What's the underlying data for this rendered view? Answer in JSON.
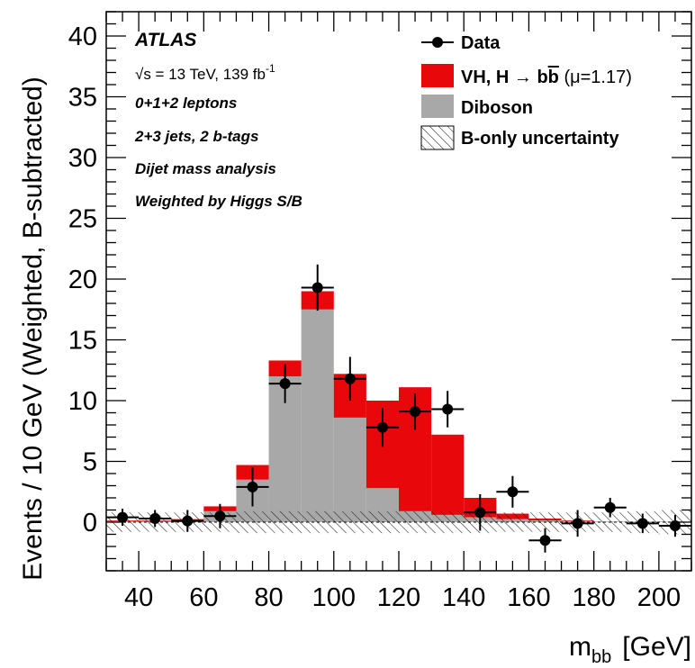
{
  "chart_data": {
    "type": "bar",
    "stacked": true,
    "xlabel": "m",
    "xlabel_subscript": "bb",
    "xlabel_unit": "[GeV]",
    "ylabel": "Events / 10 GeV (Weighted, B-subtracted)",
    "xlim": [
      30,
      210
    ],
    "ylim": [
      -4,
      42
    ],
    "xticks": [
      40,
      60,
      80,
      100,
      120,
      140,
      160,
      180,
      200
    ],
    "yticks": [
      0,
      5,
      10,
      15,
      20,
      25,
      30,
      35,
      40
    ],
    "grid": false,
    "legend_position": "top-right",
    "bin_edges": [
      30,
      40,
      50,
      60,
      70,
      80,
      90,
      100,
      110,
      120,
      130,
      140,
      150,
      160,
      170,
      180,
      190,
      200,
      210
    ],
    "series": [
      {
        "name": "Diboson",
        "color": "#a8a8a8",
        "values": [
          0.1,
          0.1,
          0.15,
          0.9,
          3.5,
          12.0,
          17.5,
          8.6,
          2.8,
          0.9,
          0.6,
          0.4,
          0.25,
          0.15,
          0.1,
          0.05,
          0.05,
          0.05
        ]
      },
      {
        "name": "VH, H → bb̄ (μ=1.17)",
        "color": "#e8070b",
        "values": [
          0.05,
          0.05,
          0.1,
          0.4,
          1.2,
          1.3,
          1.5,
          3.6,
          7.2,
          10.2,
          6.6,
          1.6,
          0.45,
          0.15,
          0.05,
          0.0,
          0.0,
          0.0
        ]
      }
    ],
    "data": {
      "name": "Data",
      "x": [
        35,
        45,
        55,
        65,
        75,
        85,
        95,
        105,
        115,
        125,
        135,
        145,
        155,
        165,
        175,
        185,
        195,
        205
      ],
      "y": [
        0.4,
        0.3,
        0.1,
        0.5,
        2.9,
        11.4,
        19.3,
        11.8,
        7.8,
        9.1,
        9.3,
        0.8,
        2.5,
        -1.5,
        -0.1,
        1.2,
        -0.1,
        -0.3
      ],
      "yerr": [
        0.7,
        0.7,
        0.9,
        1.0,
        1.6,
        1.6,
        1.9,
        1.8,
        1.6,
        1.5,
        1.5,
        1.5,
        1.3,
        1.0,
        1.1,
        0.8,
        0.8,
        0.9
      ]
    },
    "b_only_uncertainty": {
      "name": "B-only uncertainty",
      "half_width": [
        0.8,
        0.8,
        0.8,
        0.8,
        0.9,
        0.9,
        0.9,
        0.9,
        0.9,
        0.9,
        0.9,
        0.9,
        0.8,
        0.8,
        0.8,
        0.8,
        0.9,
        1.0
      ]
    }
  },
  "annotations": {
    "experiment": "ATLAS",
    "energy_prefix": "√s = 13 TeV, 139 fb",
    "energy_exponent": "-1",
    "line1": "0+1+2 leptons",
    "line2": "2+3 jets, 2 b-tags",
    "line3": "Dijet mass analysis",
    "line4": "Weighted by Higgs S/B"
  },
  "legend": {
    "data": "Data",
    "signal_prefix": "VH, H → b",
    "signal_bbar": "b",
    "signal_suffix": " (μ=1.17)",
    "diboson": "Diboson",
    "uncertainty": "B-only uncertainty"
  },
  "colors": {
    "signal": "#e8070b",
    "diboson": "#a8a8a8",
    "data": "#000000"
  }
}
